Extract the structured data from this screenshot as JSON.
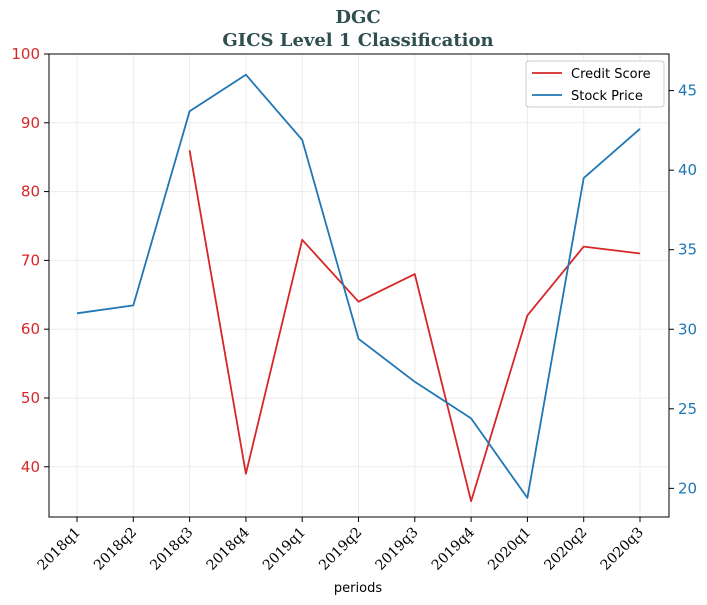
{
  "chart_data": {
    "type": "line",
    "title": "DGC",
    "subtitle": "GICS Level 1 Classification",
    "xlabel": "periods",
    "ylabel_left": "",
    "ylabel_right": "",
    "categories": [
      "2018q1",
      "2018q2",
      "2018q3",
      "2018q4",
      "2019q1",
      "2019q2",
      "2019q3",
      "2019q4",
      "2020q1",
      "2020q2",
      "2020q3"
    ],
    "y_left_range": [
      32.7,
      100
    ],
    "y_left_ticks": [
      40,
      50,
      60,
      70,
      80,
      90,
      100
    ],
    "y_right_range": [
      18.2,
      47.3
    ],
    "y_right_ticks": [
      20,
      25,
      30,
      35,
      40,
      45
    ],
    "grid": true,
    "legend_position": "top-right",
    "series": [
      {
        "name": "Credit Score",
        "axis": "left",
        "color": "#d62728",
        "values": [
          null,
          null,
          86,
          39,
          73,
          64,
          68,
          35,
          62,
          72,
          71
        ]
      },
      {
        "name": "Stock Price",
        "axis": "right",
        "color": "#1f77b4",
        "values": [
          31.0,
          31.5,
          43.7,
          46.0,
          41.9,
          29.4,
          26.7,
          24.4,
          19.4,
          39.5,
          42.6
        ]
      }
    ]
  }
}
